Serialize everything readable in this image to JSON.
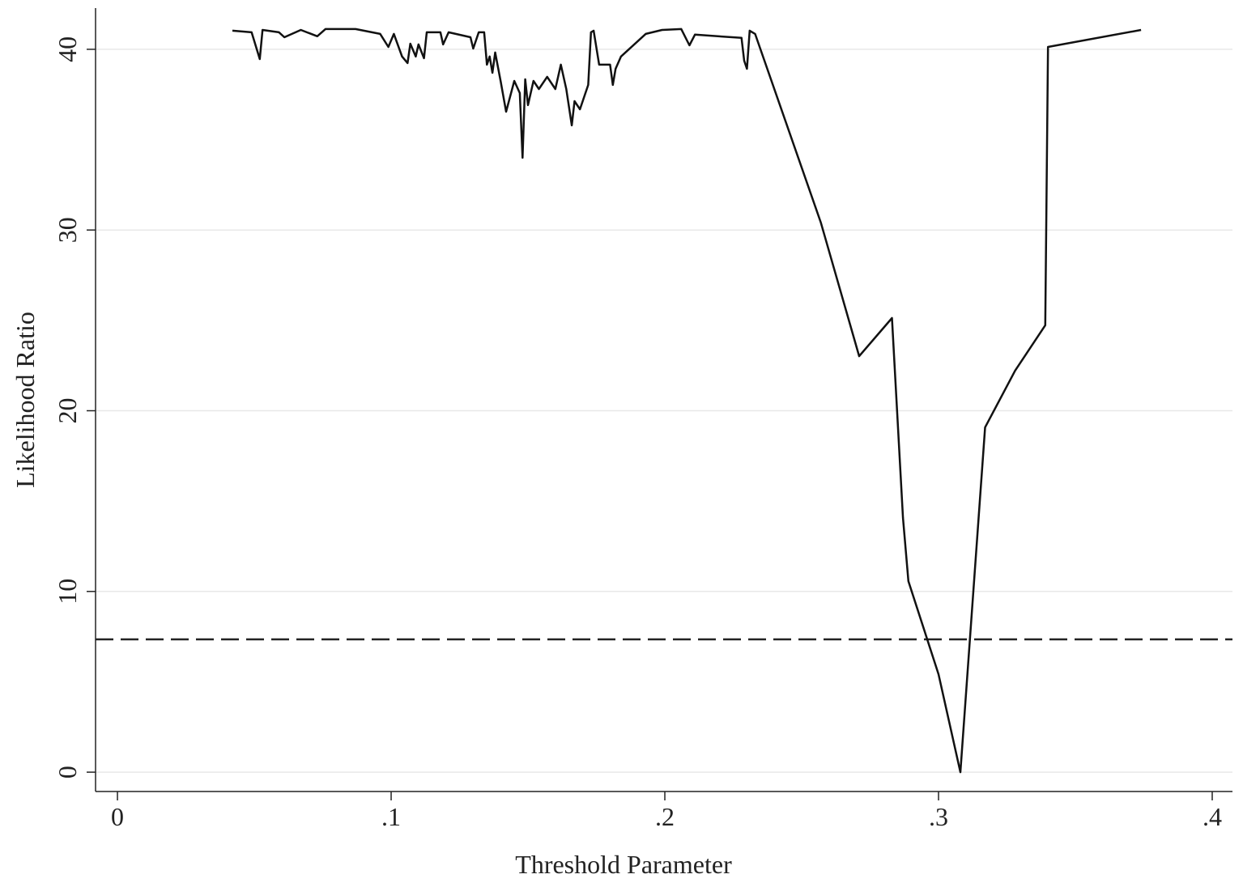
{
  "chart_data": {
    "type": "line",
    "x_label": "Threshold Parameter",
    "y_label": "Likelihood Ratio",
    "xlim": [
      -0.008,
      0.4074
    ],
    "ylim": [
      -1.07,
      42.28
    ],
    "xticks": [
      0,
      {
        "value": 0.1,
        "label": ".1"
      },
      {
        "value": 0.2,
        "label": ".2"
      },
      {
        "value": 0.3,
        "label": ".3"
      },
      {
        "value": 0.4,
        "label": ".4"
      }
    ],
    "yticks": [
      0,
      10,
      20,
      30,
      40
    ],
    "grid": true,
    "color": "#111111",
    "hline": 7.35,
    "x": [
      0.042,
      0.049,
      0.052,
      0.053,
      0.059,
      0.061,
      0.067,
      0.073,
      0.076,
      0.087,
      0.096,
      0.099,
      0.101,
      0.104,
      0.106,
      0.107,
      0.109,
      0.11,
      0.112,
      0.113,
      0.118,
      0.119,
      0.121,
      0.129,
      0.13,
      0.132,
      0.134,
      0.135,
      0.136,
      0.137,
      0.138,
      0.14,
      0.142,
      0.145,
      0.147,
      0.148,
      0.149,
      0.15,
      0.152,
      0.154,
      0.157,
      0.16,
      0.162,
      0.164,
      0.166,
      0.167,
      0.169,
      0.172,
      0.173,
      0.174,
      0.176,
      0.18,
      0.181,
      0.182,
      0.184,
      0.193,
      0.199,
      0.206,
      0.209,
      0.211,
      0.228,
      0.229,
      0.23,
      0.231,
      0.233,
      0.257,
      0.271,
      0.283,
      0.287,
      0.289,
      0.3,
      0.308,
      0.317,
      0.328,
      0.339,
      0.34,
      0.374
    ],
    "values": [
      41.03,
      40.94,
      39.46,
      41.07,
      40.94,
      40.67,
      41.07,
      40.72,
      41.12,
      41.12,
      40.85,
      40.13,
      40.85,
      39.6,
      39.24,
      40.31,
      39.6,
      40.27,
      39.51,
      40.94,
      40.94,
      40.27,
      40.94,
      40.67,
      40.04,
      40.94,
      40.94,
      39.15,
      39.6,
      38.7,
      39.82,
      38.25,
      36.55,
      38.25,
      37.58,
      34.0,
      38.34,
      36.91,
      38.25,
      37.8,
      38.48,
      37.8,
      39.15,
      37.8,
      35.79,
      37.13,
      36.68,
      38.03,
      40.94,
      41.03,
      39.15,
      39.15,
      38.03,
      38.92,
      39.6,
      40.85,
      41.07,
      41.12,
      40.22,
      40.81,
      40.63,
      39.37,
      38.92,
      41.03,
      40.85,
      30.41,
      23.02,
      25.13,
      14.07,
      10.57,
      5.42,
      0,
      19.08,
      22.22,
      24.73,
      40.13,
      41.07
    ]
  }
}
